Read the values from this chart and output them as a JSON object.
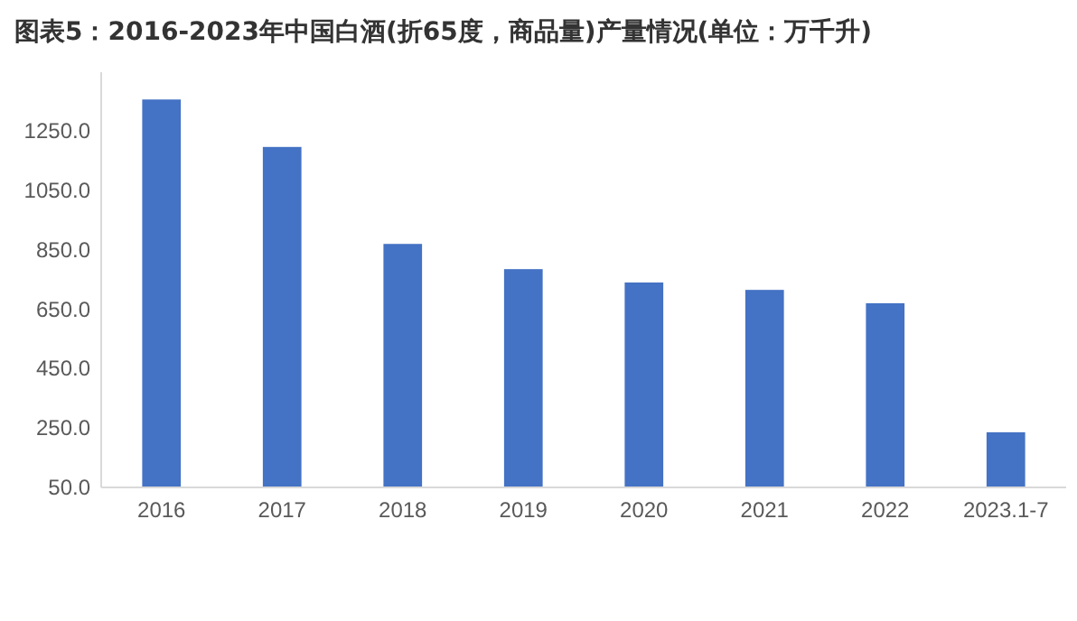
{
  "chart_data": {
    "type": "bar",
    "title": "图表5：2016-2023年中国白酒(折65度，商品量)产量情况(单位：万千升)",
    "categories": [
      "2016",
      "2017",
      "2018",
      "2019",
      "2020",
      "2021",
      "2022",
      "2023.1-7"
    ],
    "values": [
      1358,
      1198,
      871,
      786,
      741,
      716,
      671,
      236
    ],
    "color": "#4472c4",
    "ylim": [
      50,
      1450
    ],
    "yticks": [
      {
        "value": 50,
        "label": "50.0"
      },
      {
        "value": 250,
        "label": "250.0"
      },
      {
        "value": 450,
        "label": "450.0"
      },
      {
        "value": 650,
        "label": "650.0"
      },
      {
        "value": 850,
        "label": "850.0"
      },
      {
        "value": 1050,
        "label": "1050.0"
      },
      {
        "value": 1250,
        "label": "1250.0"
      }
    ],
    "grid": false,
    "legend": false
  }
}
